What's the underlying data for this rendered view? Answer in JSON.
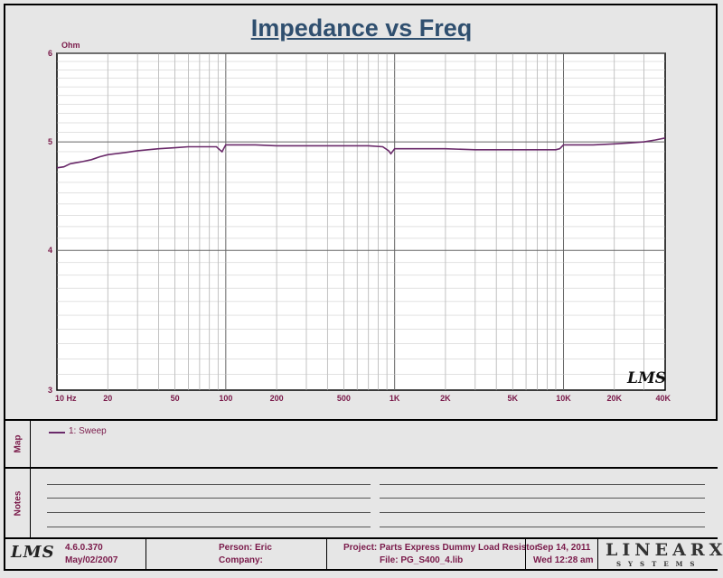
{
  "title": "Impedance vs Freq",
  "chart_data": {
    "type": "line",
    "title": "Impedance vs Freq",
    "ylabel": "Ohm",
    "xscale": "log",
    "yscale": "log",
    "xlim": [
      10,
      40000
    ],
    "ylim": [
      3,
      6
    ],
    "x_ticks": [
      {
        "v": 10,
        "label": "10  Hz"
      },
      {
        "v": 20,
        "label": "20"
      },
      {
        "v": 50,
        "label": "50"
      },
      {
        "v": 100,
        "label": "100"
      },
      {
        "v": 200,
        "label": "200"
      },
      {
        "v": 500,
        "label": "500"
      },
      {
        "v": 1000,
        "label": "1K"
      },
      {
        "v": 2000,
        "label": "2K"
      },
      {
        "v": 5000,
        "label": "5K"
      },
      {
        "v": 10000,
        "label": "10K"
      },
      {
        "v": 20000,
        "label": "20K"
      },
      {
        "v": 40000,
        "label": "40K"
      }
    ],
    "y_ticks": [
      {
        "v": 3,
        "label": "3"
      },
      {
        "v": 4,
        "label": "4"
      },
      {
        "v": 5,
        "label": "5"
      },
      {
        "v": 6,
        "label": "6"
      }
    ],
    "grid": true,
    "series": [
      {
        "name": "1: Sweep",
        "color": "#6a2a6a",
        "x": [
          10,
          11,
          12,
          14,
          16,
          18,
          20,
          25,
          30,
          40,
          50,
          60,
          70,
          80,
          88,
          92,
          95,
          100,
          150,
          200,
          300,
          500,
          700,
          850,
          920,
          950,
          1000,
          1500,
          2000,
          3000,
          5000,
          7000,
          9000,
          9500,
          10000,
          15000,
          20000,
          25000,
          30000,
          35000,
          40000
        ],
        "y": [
          4.74,
          4.75,
          4.78,
          4.8,
          4.82,
          4.85,
          4.87,
          4.89,
          4.91,
          4.93,
          4.94,
          4.95,
          4.95,
          4.95,
          4.95,
          4.92,
          4.9,
          4.97,
          4.97,
          4.96,
          4.96,
          4.96,
          4.96,
          4.95,
          4.91,
          4.88,
          4.93,
          4.93,
          4.93,
          4.92,
          4.92,
          4.92,
          4.92,
          4.93,
          4.97,
          4.97,
          4.98,
          4.99,
          5.0,
          5.02,
          5.04
        ]
      }
    ]
  },
  "watermark": "LMS",
  "sections": {
    "map_label": "Map",
    "notes_label": "Notes"
  },
  "legend": {
    "entry": "1: Sweep"
  },
  "footer": {
    "logo": "LMS",
    "version": "4.6.0.370",
    "version_date": "May/02/2007",
    "person": "Person: Eric",
    "company": "Company:",
    "project": "Project: Parts Express Dummy Load Resistor",
    "file": "File: PG_S400_4.lib",
    "date": "Sep 14, 2011",
    "time": "Wed 12:28 am",
    "brand": "LINEARX",
    "brand_sub": "SYSTEMS"
  },
  "colors": {
    "curve": "#6a2a6a",
    "text": "#7a1a4a",
    "grid": "#999999",
    "title": "#2f4f6f"
  }
}
